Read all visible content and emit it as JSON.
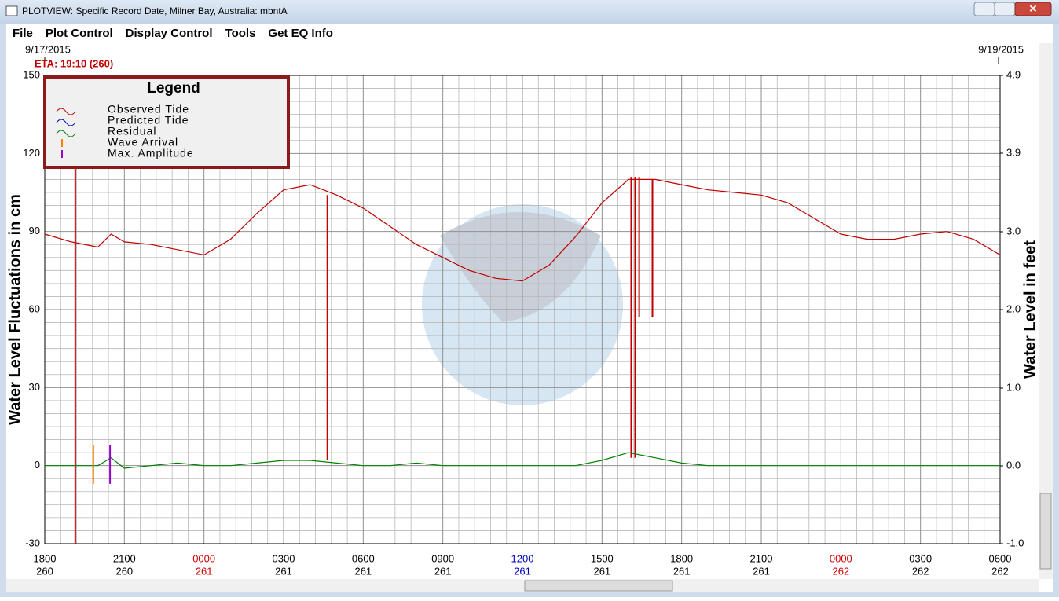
{
  "window": {
    "title": "PLOTVIEW: Specific Record Date, Milner Bay, Australia: mbntA",
    "menu": [
      "File",
      "Plot Control",
      "Display Control",
      "Tools",
      "Get EQ Info"
    ]
  },
  "chart_data": {
    "type": "line",
    "start_date": "9/17/2015",
    "end_date": "9/19/2015",
    "eta": "ETA: 19:10 (260)",
    "ylabel": "Water Level Fluctuations in cm",
    "y2label": "Water Level in feet",
    "xlim": [
      0,
      36
    ],
    "xticks": [
      {
        "value": 0,
        "label": "1800",
        "day": "260",
        "color": "#000000"
      },
      {
        "value": 3,
        "label": "2100",
        "day": "260",
        "color": "#000000"
      },
      {
        "value": 6,
        "label": "0000",
        "day": "261",
        "color": "#d00000"
      },
      {
        "value": 9,
        "label": "0300",
        "day": "261",
        "color": "#000000"
      },
      {
        "value": 12,
        "label": "0600",
        "day": "261",
        "color": "#000000"
      },
      {
        "value": 15,
        "label": "0900",
        "day": "261",
        "color": "#000000"
      },
      {
        "value": 18,
        "label": "1200",
        "day": "261",
        "color": "#0000c0"
      },
      {
        "value": 21,
        "label": "1500",
        "day": "261",
        "color": "#000000"
      },
      {
        "value": 24,
        "label": "1800",
        "day": "261",
        "color": "#000000"
      },
      {
        "value": 27,
        "label": "2100",
        "day": "261",
        "color": "#000000"
      },
      {
        "value": 30,
        "label": "0000",
        "day": "262",
        "color": "#d00000"
      },
      {
        "value": 33,
        "label": "0300",
        "day": "262",
        "color": "#000000"
      },
      {
        "value": 36,
        "label": "0600",
        "day": "262",
        "color": "#000000"
      }
    ],
    "ylim": [
      -30,
      150
    ],
    "yticks": [
      -30,
      0,
      30,
      60,
      90,
      120,
      150
    ],
    "y2lim": [
      -0.98,
      4.92
    ],
    "y2ticks": [
      {
        "value": -0.98,
        "label": "-1.0"
      },
      {
        "value": 0,
        "label": "0.0"
      },
      {
        "value": 0.98,
        "label": "1.0"
      },
      {
        "value": 1.97,
        "label": "2.0"
      },
      {
        "value": 2.95,
        "label": "3.0"
      },
      {
        "value": 3.94,
        "label": "3.9"
      },
      {
        "value": 4.92,
        "label": "4.9"
      }
    ],
    "grid": true,
    "x": [
      0,
      1,
      2,
      2.5,
      3,
      4,
      5,
      6,
      7,
      8,
      9,
      10,
      11,
      12,
      13,
      14,
      15,
      16,
      17,
      18,
      19,
      20,
      21,
      22,
      23,
      24,
      25,
      26,
      27,
      28,
      29,
      30,
      31,
      32,
      33,
      34,
      35,
      36
    ],
    "series": [
      {
        "color": "#c00000",
        "values": [
          89,
          86,
          84,
          89,
          86,
          85,
          83,
          81,
          87,
          97,
          106,
          108,
          104,
          99,
          92,
          85,
          80,
          75,
          72,
          71,
          77,
          88,
          101,
          110,
          110,
          108,
          106,
          105,
          104,
          101,
          95,
          89,
          87,
          87,
          89,
          90,
          87,
          81
        ]
      },
      {
        "color": "#008000",
        "values": [
          0,
          0,
          0,
          3,
          -1,
          0,
          1,
          0,
          0,
          1,
          2,
          2,
          1,
          0,
          0,
          1,
          0,
          0,
          0,
          0,
          0,
          0,
          2,
          5,
          3,
          1,
          0,
          0,
          0,
          0,
          0,
          0,
          0,
          0,
          0,
          0,
          0,
          0
        ]
      }
    ],
    "spikes": [
      {
        "x": 1.15,
        "ymin": -30,
        "ymax": 150
      },
      {
        "x": 10.65,
        "ymin": 2,
        "ymax": 104
      },
      {
        "x": 22.1,
        "ymin": 3,
        "ymax": 111
      },
      {
        "x": 22.25,
        "ymin": 3,
        "ymax": 111
      },
      {
        "x": 22.4,
        "ymin": 57,
        "ymax": 111
      },
      {
        "x": 22.9,
        "ymin": 57,
        "ymax": 110
      }
    ],
    "markers": [
      {
        "x": 1.83,
        "ymin": -7,
        "ymax": 8,
        "color": "#ff8000"
      },
      {
        "x": 2.46,
        "ymin": -7,
        "ymax": 8,
        "color": "#9900cc"
      }
    ],
    "legend": {
      "title": "Legend",
      "items": [
        {
          "name": "Observed Tide",
          "color": "#c00000",
          "symbol": "wave"
        },
        {
          "name": "Predicted Tide",
          "color": "#0000c0",
          "symbol": "wave"
        },
        {
          "name": "Residual",
          "color": "#008000",
          "symbol": "wave"
        },
        {
          "name": "Wave Arrival",
          "color": "#ff8000",
          "symbol": "bar"
        },
        {
          "name": "Max. Amplitude",
          "color": "#9900cc",
          "symbol": "bar"
        }
      ]
    }
  }
}
